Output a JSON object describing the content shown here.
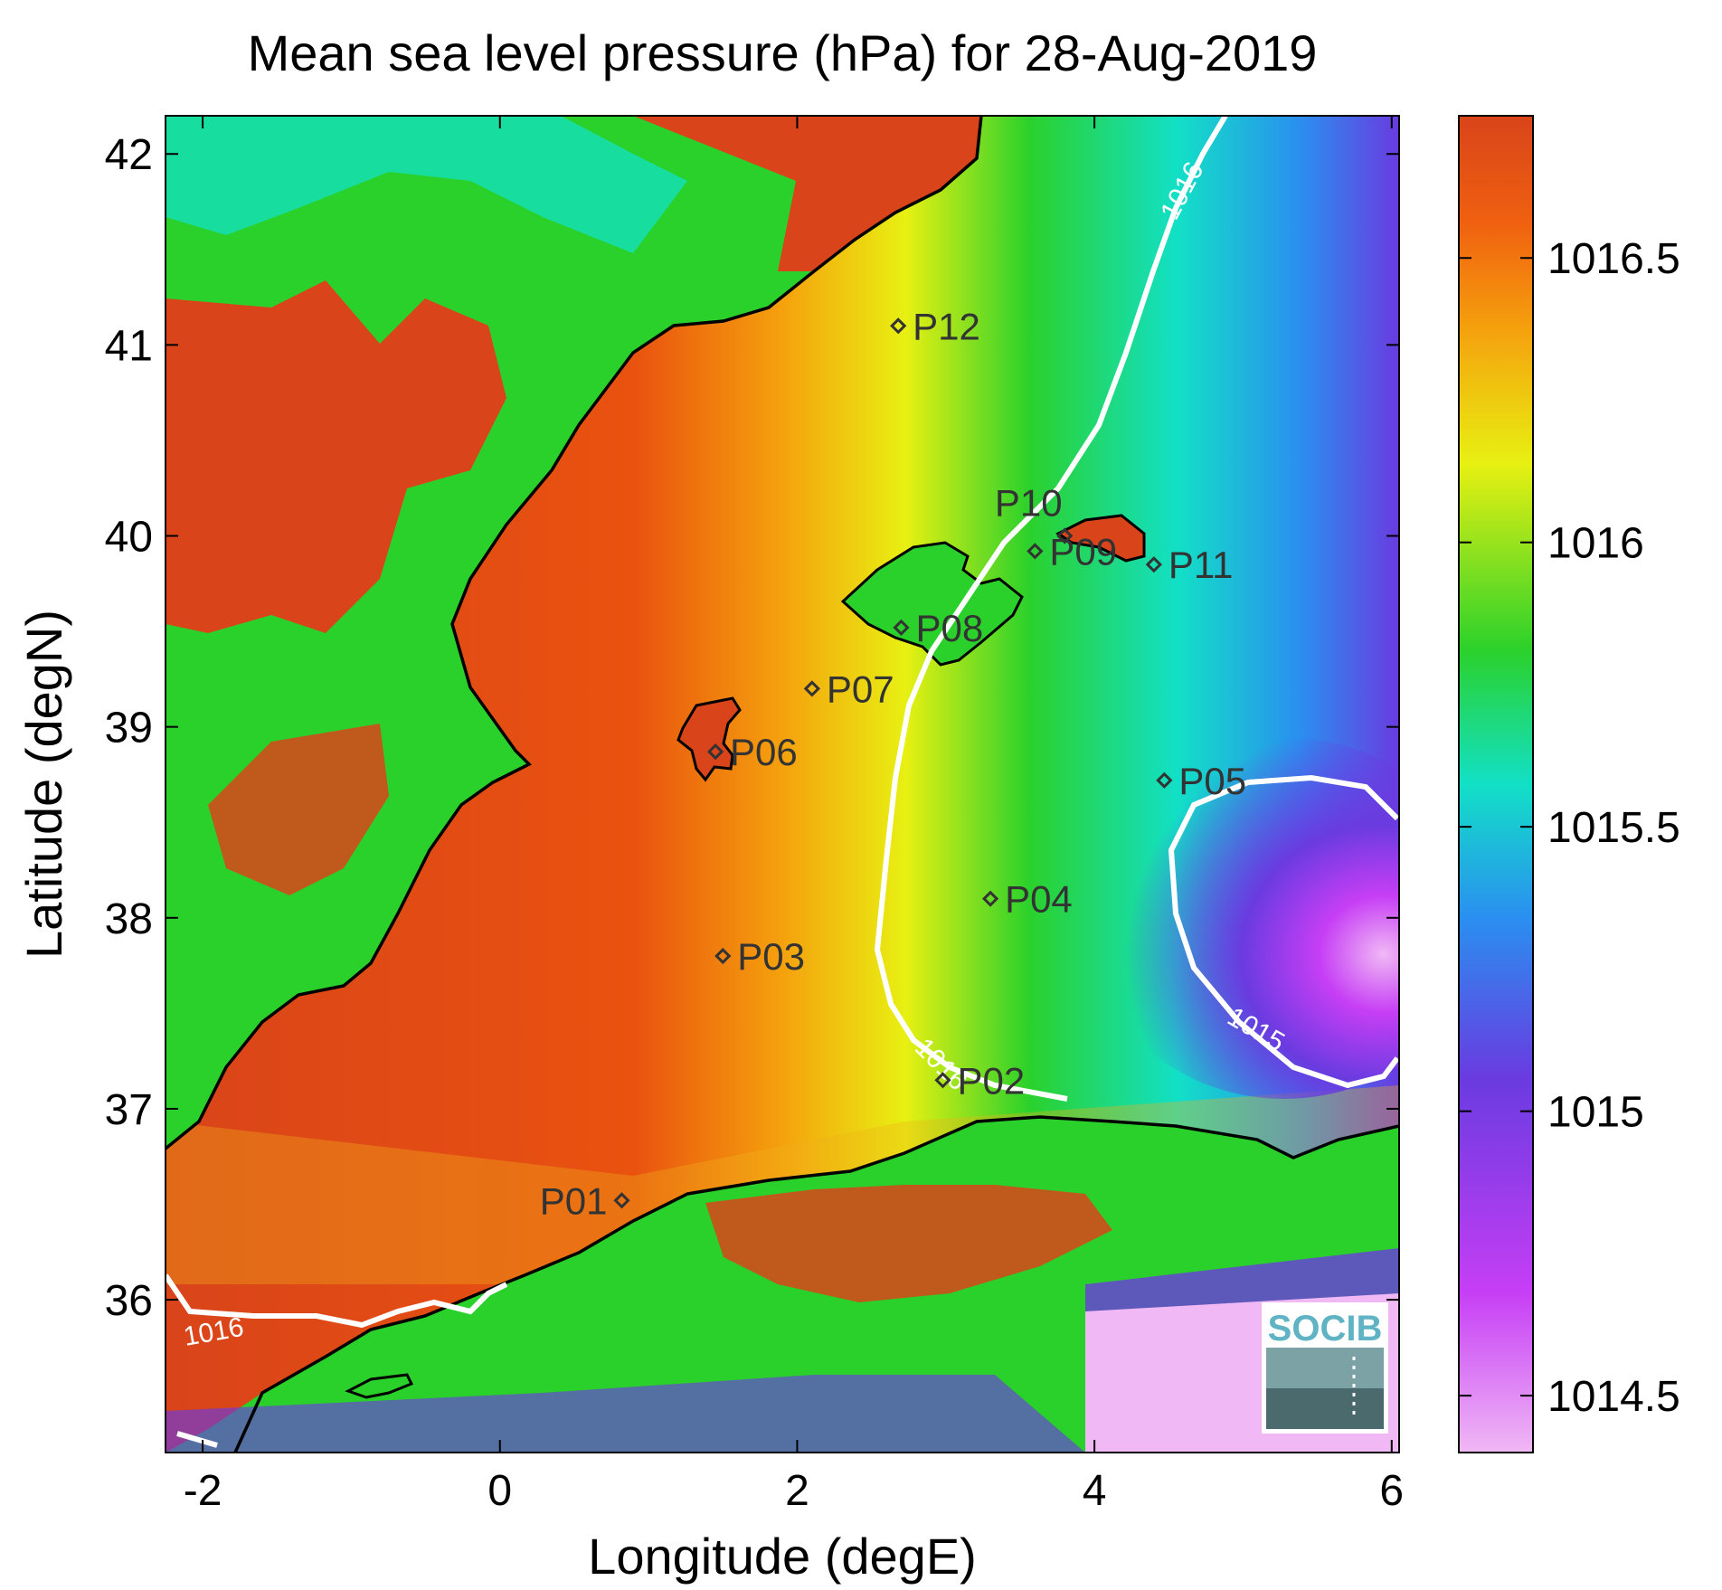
{
  "title": "Mean sea level pressure (hPa) for 28-Aug-2019",
  "xlabel": "Longitude (degE)",
  "ylabel": "Latitude (degN)",
  "x_ticks": [
    "-2",
    "0",
    "2",
    "4",
    "6"
  ],
  "y_ticks": [
    "36",
    "37",
    "38",
    "39",
    "40",
    "41",
    "42"
  ],
  "colorbar_ticks": [
    "1014.5",
    "1015",
    "1015.5",
    "1016",
    "1016.5"
  ],
  "contour_labels": [
    "1016",
    "1015",
    "1016",
    "1016"
  ],
  "logo_text": "SOCIB",
  "colors": {
    "max": "#d9441a",
    "high": "#f5a10d",
    "mid_high": "#e8f012",
    "mid": "#2bd12b",
    "mid_low": "#12e0c6",
    "low_mid": "#2a8ff0",
    "low": "#6a3be0",
    "min": "#f0b8f5"
  },
  "chart_data": {
    "type": "heatmap",
    "title": "Mean sea level pressure (hPa) for 28-Aug-2019",
    "xlabel": "Longitude (degE)",
    "ylabel": "Latitude (degN)",
    "xlim": [
      -2.25,
      6.05
    ],
    "ylim": [
      35.2,
      42.2
    ],
    "colorbar": {
      "range": [
        1014.4,
        1016.75
      ]
    },
    "contour_levels": [
      1015,
      1016
    ],
    "stations": [
      {
        "name": "P01",
        "lon": 0.82,
        "lat": 36.52
      },
      {
        "name": "P02",
        "lon": 2.98,
        "lat": 37.15
      },
      {
        "name": "P03",
        "lon": 1.5,
        "lat": 37.8
      },
      {
        "name": "P04",
        "lon": 3.3,
        "lat": 38.1
      },
      {
        "name": "P05",
        "lon": 4.47,
        "lat": 38.72
      },
      {
        "name": "P06",
        "lon": 1.45,
        "lat": 38.87
      },
      {
        "name": "P07",
        "lon": 2.1,
        "lat": 39.2
      },
      {
        "name": "P08",
        "lon": 2.7,
        "lat": 39.52
      },
      {
        "name": "P09",
        "lon": 3.6,
        "lat": 39.92
      },
      {
        "name": "P10",
        "lon": 3.8,
        "lat": 40.0
      },
      {
        "name": "P11",
        "lon": 4.4,
        "lat": 39.85
      },
      {
        "name": "P12",
        "lon": 2.68,
        "lat": 41.1
      }
    ]
  }
}
